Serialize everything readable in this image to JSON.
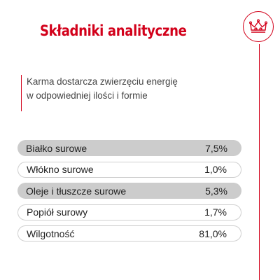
{
  "title": "Składniki analityczne",
  "colors": {
    "accent": "#d2001a",
    "shaded_row": "#cccccc",
    "row_border": "#cfcfcf"
  },
  "logo": {
    "icon": "crown-icon"
  },
  "intro": {
    "line1": "Karma dostarcza zwierzęciu energię",
    "line2": "w odpowiedniej ilości i formie"
  },
  "nutrients": [
    {
      "label": "Białko surowe",
      "value": "7,5%"
    },
    {
      "label": "Włókno surowe",
      "value": "1,0%"
    },
    {
      "label": "Oleje i tłuszcze surowe",
      "value": "5,3%"
    },
    {
      "label": "Popiół surowy",
      "value": "1,7%"
    },
    {
      "label": "Wilgotność",
      "value": "81,0%"
    }
  ]
}
